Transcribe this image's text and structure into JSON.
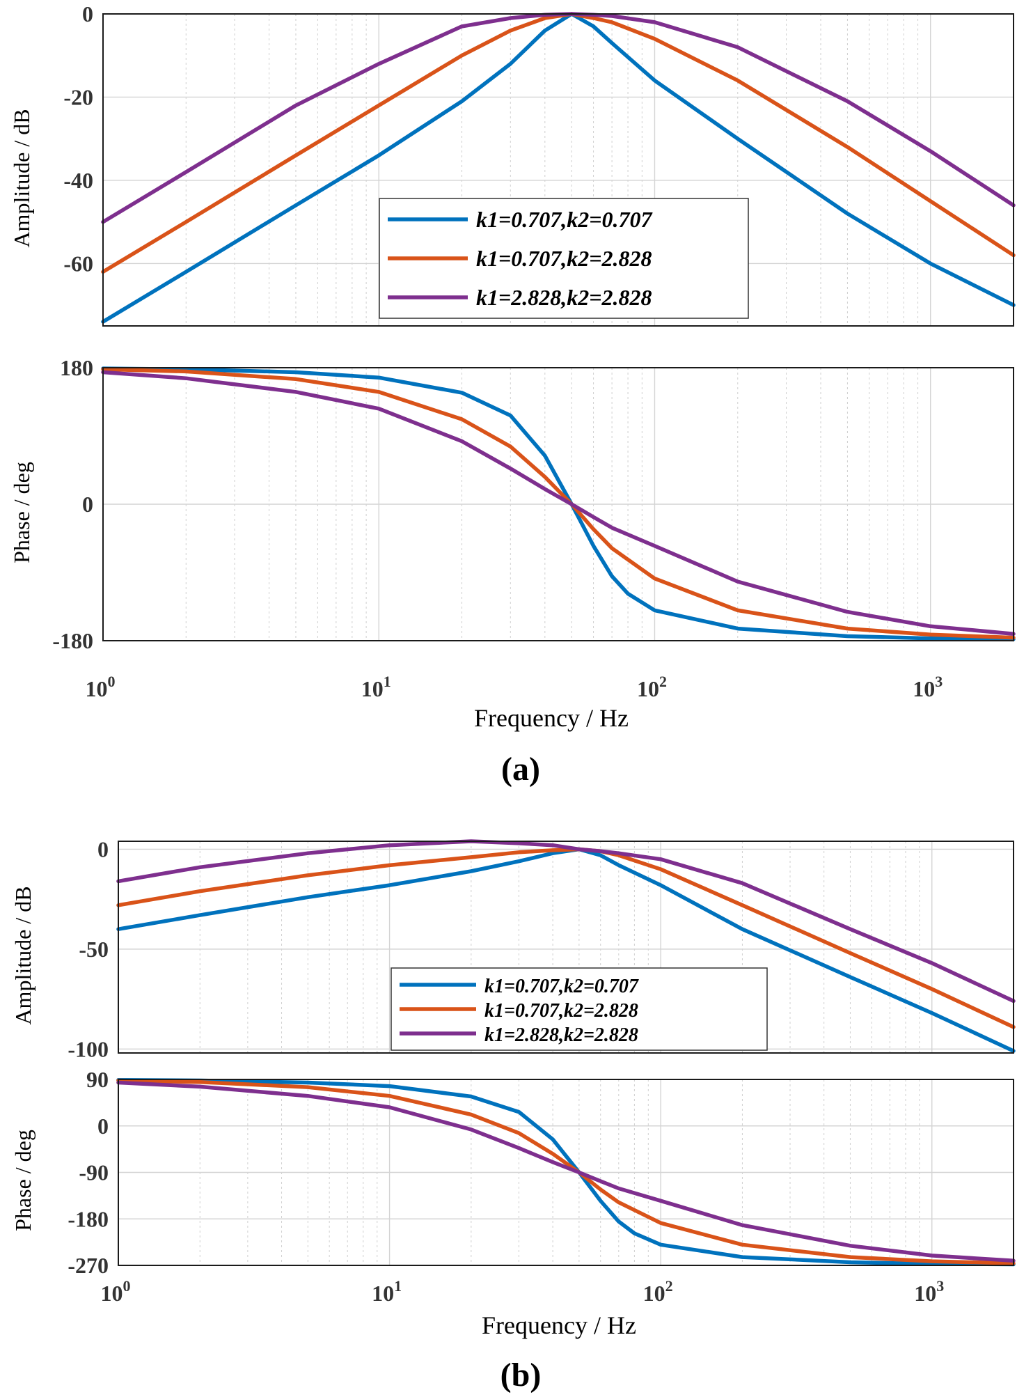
{
  "colors": {
    "series_1": "#0072BD",
    "series_2": "#D95319",
    "series_3": "#7E2F8E",
    "grid": "#d4d4d4",
    "axes": "#1a1a1a"
  },
  "chart_data": [
    {
      "panel": "a",
      "panel_label": "(a)",
      "x_scale": "log",
      "xlim": [
        1,
        2000
      ],
      "xlabel": "Frequency / Hz",
      "x_tick_labels": [
        {
          "base": "10",
          "exp": "0",
          "value": 1
        },
        {
          "base": "10",
          "exp": "1",
          "value": 10
        },
        {
          "base": "10",
          "exp": "2",
          "value": 100
        },
        {
          "base": "10",
          "exp": "3",
          "value": 1000
        }
      ],
      "grid": true,
      "legend_position": "lower-center of amplitude plot",
      "series_names": [
        "k1=0.707,k2=0.707",
        "k1=0.707,k2=2.828",
        "k1=2.828,k2=2.828"
      ],
      "plots": [
        {
          "type": "line",
          "ylabel": "Amplitude / dB",
          "ylim": [
            -75,
            0
          ],
          "y_ticks": [
            "0",
            "-20",
            "-40",
            "-60"
          ],
          "y_tick_values": [
            0,
            -20,
            -40,
            -60
          ],
          "series": [
            {
              "name": "k1=0.707,k2=0.707",
              "x": [
                1,
                2,
                5,
                10,
                20,
                30,
                40,
                50,
                60,
                70,
                100,
                200,
                500,
                1000,
                2000
              ],
              "y": [
                -74,
                -62,
                -46,
                -34,
                -21,
                -12,
                -4,
                0,
                -3,
                -7,
                -16,
                -30,
                -48,
                -60,
                -70
              ]
            },
            {
              "name": "k1=0.707,k2=2.828",
              "x": [
                1,
                2,
                5,
                10,
                20,
                30,
                40,
                50,
                60,
                70,
                100,
                200,
                500,
                1000,
                2000
              ],
              "y": [
                -62,
                -50,
                -34,
                -22,
                -10,
                -4,
                -1,
                0,
                -1,
                -2,
                -6,
                -16,
                -32,
                -45,
                -58
              ]
            },
            {
              "name": "k1=2.828,k2=2.828",
              "x": [
                1,
                2,
                5,
                10,
                20,
                30,
                40,
                50,
                60,
                70,
                100,
                200,
                500,
                1000,
                2000
              ],
              "y": [
                -50,
                -38,
                -22,
                -12,
                -3,
                -1,
                -0.2,
                0,
                -0.2,
                -0.5,
                -2,
                -8,
                -21,
                -33,
                -46
              ]
            }
          ]
        },
        {
          "type": "line",
          "ylabel": "Phase / deg",
          "ylim": [
            -180,
            180
          ],
          "y_ticks": [
            "180",
            "0",
            "-180"
          ],
          "y_tick_values": [
            180,
            0,
            -180
          ],
          "series": [
            {
              "name": "k1=0.707,k2=0.707",
              "x": [
                1,
                2,
                5,
                10,
                20,
                30,
                40,
                50,
                60,
                70,
                80,
                100,
                200,
                500,
                1000,
                2000
              ],
              "y": [
                179,
                178,
                174,
                167,
                147,
                117,
                64,
                0,
                -55,
                -95,
                -118,
                -140,
                -164,
                -174,
                -177,
                -178
              ]
            },
            {
              "name": "k1=0.707,k2=2.828",
              "x": [
                1,
                2,
                5,
                10,
                20,
                30,
                40,
                50,
                60,
                70,
                100,
                200,
                500,
                1000,
                2000
              ],
              "y": [
                178,
                175,
                165,
                148,
                112,
                76,
                36,
                0,
                -33,
                -58,
                -98,
                -140,
                -164,
                -172,
                -176
              ]
            },
            {
              "name": "k1=2.828,k2=2.828",
              "x": [
                1,
                2,
                5,
                10,
                20,
                30,
                40,
                50,
                60,
                70,
                100,
                200,
                500,
                1000,
                2000
              ],
              "y": [
                174,
                166,
                148,
                126,
                83,
                47,
                20,
                0,
                -17,
                -31,
                -55,
                -102,
                -142,
                -161,
                -171
              ]
            }
          ]
        }
      ]
    },
    {
      "panel": "b",
      "panel_label": "(b)",
      "x_scale": "log",
      "xlim": [
        1,
        2000
      ],
      "xlabel": "Frequency / Hz",
      "x_tick_labels": [
        {
          "base": "10",
          "exp": "0",
          "value": 1
        },
        {
          "base": "10",
          "exp": "1",
          "value": 10
        },
        {
          "base": "10",
          "exp": "2",
          "value": 100
        },
        {
          "base": "10",
          "exp": "3",
          "value": 1000
        }
      ],
      "grid": true,
      "legend_position": "lower-center of amplitude plot",
      "series_names": [
        "k1=0.707,k2=0.707",
        "k1=0.707,k2=2.828",
        "k1=2.828,k2=2.828"
      ],
      "plots": [
        {
          "type": "line",
          "ylabel": "Amplitude / dB",
          "ylim": [
            -102,
            4
          ],
          "y_ticks": [
            "0",
            "-50",
            "-100"
          ],
          "y_tick_values": [
            0,
            -50,
            -100
          ],
          "series": [
            {
              "name": "k1=0.707,k2=0.707",
              "x": [
                1,
                2,
                5,
                10,
                20,
                30,
                40,
                50,
                60,
                70,
                100,
                200,
                500,
                1000,
                2000
              ],
              "y": [
                -40,
                -33,
                -24,
                -18,
                -11,
                -6,
                -2,
                0,
                -3,
                -8,
                -18,
                -40,
                -64,
                -82,
                -101
              ]
            },
            {
              "name": "k1=0.707,k2=2.828",
              "x": [
                1,
                2,
                5,
                10,
                20,
                30,
                40,
                50,
                60,
                70,
                100,
                200,
                500,
                1000,
                2000
              ],
              "y": [
                -28,
                -21,
                -13,
                -8,
                -4,
                -1.5,
                -0.5,
                0,
                -1,
                -3,
                -10,
                -28,
                -52,
                -70,
                -89
              ]
            },
            {
              "name": "k1=2.828,k2=2.828",
              "x": [
                1,
                2,
                5,
                10,
                20,
                30,
                40,
                50,
                60,
                70,
                100,
                200,
                500,
                1000,
                2000
              ],
              "y": [
                -16,
                -9,
                -2,
                2,
                4,
                3,
                2,
                0,
                -1,
                -2,
                -5,
                -17,
                -40,
                -57,
                -76
              ]
            }
          ]
        },
        {
          "type": "line",
          "ylabel": "Phase / deg",
          "ylim": [
            -270,
            90
          ],
          "y_ticks": [
            "90",
            "0",
            "-90",
            "-180",
            "-270"
          ],
          "y_tick_values": [
            90,
            0,
            -90,
            -180,
            -270
          ],
          "series": [
            {
              "name": "k1=0.707,k2=0.707",
              "x": [
                1,
                2,
                5,
                10,
                20,
                30,
                40,
                50,
                60,
                70,
                80,
                100,
                200,
                500,
                1000,
                2000
              ],
              "y": [
                89,
                88,
                84,
                77,
                57,
                27,
                -26,
                -90,
                -145,
                -185,
                -208,
                -230,
                -254,
                -264,
                -267,
                -268
              ]
            },
            {
              "name": "k1=0.707,k2=2.828",
              "x": [
                1,
                2,
                5,
                10,
                20,
                30,
                40,
                50,
                60,
                70,
                100,
                200,
                500,
                1000,
                2000
              ],
              "y": [
                88,
                85,
                75,
                58,
                22,
                -14,
                -54,
                -90,
                -123,
                -148,
                -188,
                -230,
                -254,
                -262,
                -266
              ]
            },
            {
              "name": "k1=2.828,k2=2.828",
              "x": [
                1,
                2,
                5,
                10,
                20,
                30,
                40,
                50,
                60,
                70,
                100,
                200,
                500,
                1000,
                2000
              ],
              "y": [
                84,
                76,
                58,
                36,
                -7,
                -43,
                -70,
                -90,
                -107,
                -121,
                -145,
                -192,
                -232,
                -251,
                -261
              ]
            }
          ]
        }
      ]
    }
  ]
}
